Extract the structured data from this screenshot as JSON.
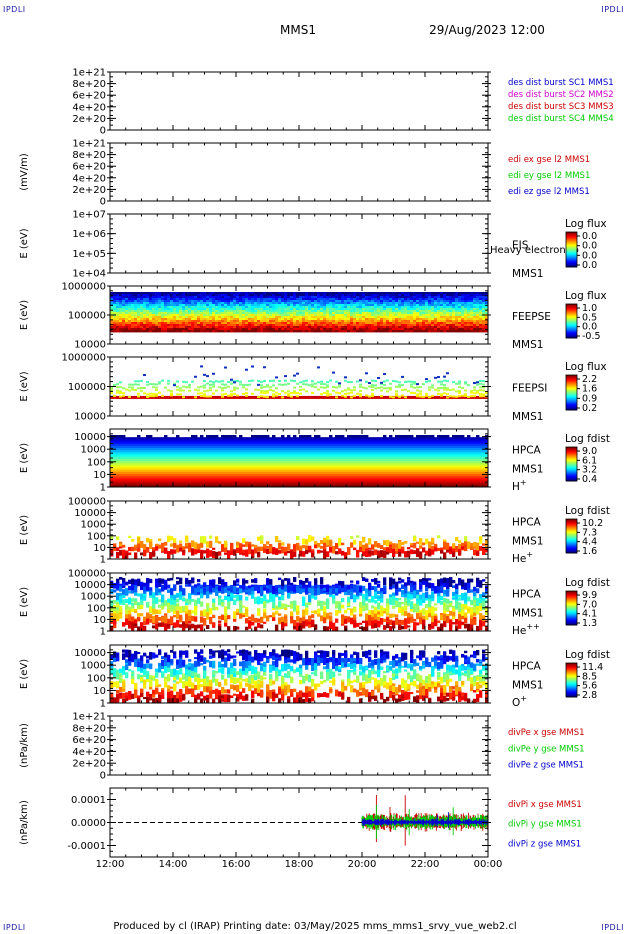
{
  "corner_label": "IPDLI",
  "header": {
    "spacecraft": "MMS1",
    "datetime": "29/Aug/2023 12:00"
  },
  "footer": "Produced by cl (IRAP)   Printing date: 03/May/2025   mms_mms1_srvy_vue_web2.cl",
  "colors": {
    "black": "#000000",
    "blue": "#0000cc",
    "green": "#00cc00",
    "red": "#cc0000",
    "magenta": "#cc00cc"
  },
  "chart_data": [
    {
      "id": "des-dist",
      "type": "line",
      "ylabel": "",
      "yticks": [
        "1e+21",
        "8e+20",
        "6e+20",
        "4e+20",
        "2e+20",
        "0"
      ],
      "ylim": [
        0,
        1e+21
      ],
      "zero_line": true,
      "legend": [
        {
          "text": "des dist burst SC1 MMS1",
          "color": "#0000cc"
        },
        {
          "text": "des dist burst SC2 MMS2",
          "color": "#cc00cc"
        },
        {
          "text": "des dist burst SC3 MMS3",
          "color": "#cc0000"
        },
        {
          "text": "des dist burst SC4 MMS4",
          "color": "#00cc00"
        }
      ],
      "series": []
    },
    {
      "id": "edi-e",
      "type": "line",
      "ylabel": "(mV/m)",
      "yticks": [
        "1e+21",
        "8e+20",
        "6e+20",
        "4e+20",
        "2e+20",
        "0"
      ],
      "ylim": [
        0,
        1e+21
      ],
      "zero_line": true,
      "legend": [
        {
          "text": "edi ex gse l2 MMS1",
          "color": "#cc0000"
        },
        {
          "text": "edi ey gse l2 MMS1",
          "color": "#00cc00"
        },
        {
          "text": "edi ez gse l2 MMS1",
          "color": "#0000cc"
        }
      ],
      "series": []
    },
    {
      "id": "eis",
      "type": "heatmap",
      "ylabel": "E (eV)",
      "yscale": "log",
      "yticks": [
        "1e+07",
        "1e+06",
        "1e+05",
        "1e+04"
      ],
      "ylim": [
        10000.0,
        10000000.0
      ],
      "side_labels": [
        "EIS",
        "MMS1"
      ],
      "overlay_text": "Heavy electron to",
      "colorbar": {
        "title": "Log flux",
        "ticks": [
          "0.0",
          "0.0",
          "0.0",
          "0.0"
        ]
      },
      "coverage": "none"
    },
    {
      "id": "feeps-e",
      "type": "heatmap",
      "ylabel": "E (eV)",
      "yscale": "log",
      "yticks": [
        "1000000",
        "100000",
        "10000"
      ],
      "ylim": [
        10000.0,
        1000000.0
      ],
      "side_labels": [
        "FEEPSE",
        "MMS1"
      ],
      "colorbar": {
        "title": "Log flux",
        "ticks": [
          "1.0",
          "0.5",
          "0.0",
          "-0.5"
        ]
      },
      "coverage": "full"
    },
    {
      "id": "feeps-i",
      "type": "heatmap",
      "ylabel": "E (eV)",
      "yscale": "log",
      "yticks": [
        "1000000",
        "100000",
        "10000"
      ],
      "ylim": [
        10000.0,
        1000000.0
      ],
      "side_labels": [
        "FEEPSI",
        "MMS1"
      ],
      "colorbar": {
        "title": "Log flux",
        "ticks": [
          "2.2",
          "1.6",
          "0.9",
          "0.2"
        ]
      },
      "coverage": "ions"
    },
    {
      "id": "hpca-h",
      "type": "heatmap",
      "ylabel": "E (eV)",
      "yscale": "log",
      "yticks": [
        "10000",
        "1000",
        "100",
        "10",
        "1"
      ],
      "ylim": [
        1,
        40000
      ],
      "side_labels": [
        "HPCA",
        "MMS1",
        "H+"
      ],
      "colorbar": {
        "title": "Log fdist",
        "ticks": [
          "9.0",
          "6.1",
          "3.2",
          "0.4"
        ]
      },
      "coverage": "dense"
    },
    {
      "id": "hpca-he1",
      "type": "heatmap",
      "ylabel": "E (eV)",
      "yscale": "log",
      "yticks": [
        "100000",
        "10000",
        "1000",
        "100",
        "10",
        "1"
      ],
      "ylim": [
        1,
        100000
      ],
      "side_labels": [
        "HPCA",
        "MMS1",
        "He+"
      ],
      "colorbar": {
        "title": "Log fdist",
        "ticks": [
          "10.2",
          "7.3",
          "4.4",
          "1.6"
        ]
      },
      "coverage": "sparse"
    },
    {
      "id": "hpca-he2",
      "type": "heatmap",
      "ylabel": "E (eV)",
      "yscale": "log",
      "yticks": [
        "100000",
        "10000",
        "1000",
        "100",
        "10",
        "1"
      ],
      "ylim": [
        1,
        100000
      ],
      "side_labels": [
        "HPCA",
        "MMS1",
        "He++"
      ],
      "colorbar": {
        "title": "Log fdist",
        "ticks": [
          "9.9",
          "7.0",
          "4.1",
          "1.3"
        ]
      },
      "coverage": "medium"
    },
    {
      "id": "hpca-o",
      "type": "heatmap",
      "ylabel": "E (eV)",
      "yscale": "log",
      "yticks": [
        "10000",
        "1000",
        "100",
        "10",
        "1"
      ],
      "ylim": [
        1,
        40000
      ],
      "side_labels": [
        "HPCA",
        "MMS1",
        "O+"
      ],
      "colorbar": {
        "title": "Log fdist",
        "ticks": [
          "11.4",
          "8.5",
          "5.6",
          "2.8"
        ]
      },
      "coverage": "oxygen"
    },
    {
      "id": "divpe",
      "type": "line",
      "ylabel": "(nPa/km)",
      "yticks": [
        "1e+21",
        "8e+20",
        "6e+20",
        "4e+20",
        "2e+20",
        "0"
      ],
      "ylim": [
        0,
        1e+21
      ],
      "zero_line": true,
      "legend": [
        {
          "text": "divPe x gse MMS1",
          "color": "#cc0000"
        },
        {
          "text": "divPe y gse MMS1",
          "color": "#00cc00"
        },
        {
          "text": "divPe z gse MMS1",
          "color": "#0000cc"
        }
      ],
      "series": []
    },
    {
      "id": "divpi",
      "type": "line",
      "ylabel": "(nPa/km)",
      "yticks": [
        "0.0001",
        "0.0000",
        "-0.0001"
      ],
      "ylim": [
        -0.00015,
        0.00015
      ],
      "zero_line": true,
      "legend": [
        {
          "text": "divPi x gse MMS1",
          "color": "#cc0000"
        },
        {
          "text": "divPi y gse MMS1",
          "color": "#00cc00"
        },
        {
          "text": "divPi z gse MMS1",
          "color": "#0000cc"
        }
      ],
      "data_start_hour": 20.0,
      "series": [
        {
          "name": "divPi x gse MMS1",
          "color": "#cc0000",
          "amplitude": 3e-05
        },
        {
          "name": "divPi y gse MMS1",
          "color": "#00cc00",
          "amplitude": 2.5e-05
        },
        {
          "name": "divPi z gse MMS1",
          "color": "#0000cc",
          "amplitude": 1.2e-05
        }
      ]
    }
  ],
  "x_axis": {
    "ticks": [
      "12:00",
      "14:00",
      "16:00",
      "18:00",
      "20:00",
      "22:00",
      "00:00"
    ],
    "range_hours": [
      12,
      24
    ]
  }
}
